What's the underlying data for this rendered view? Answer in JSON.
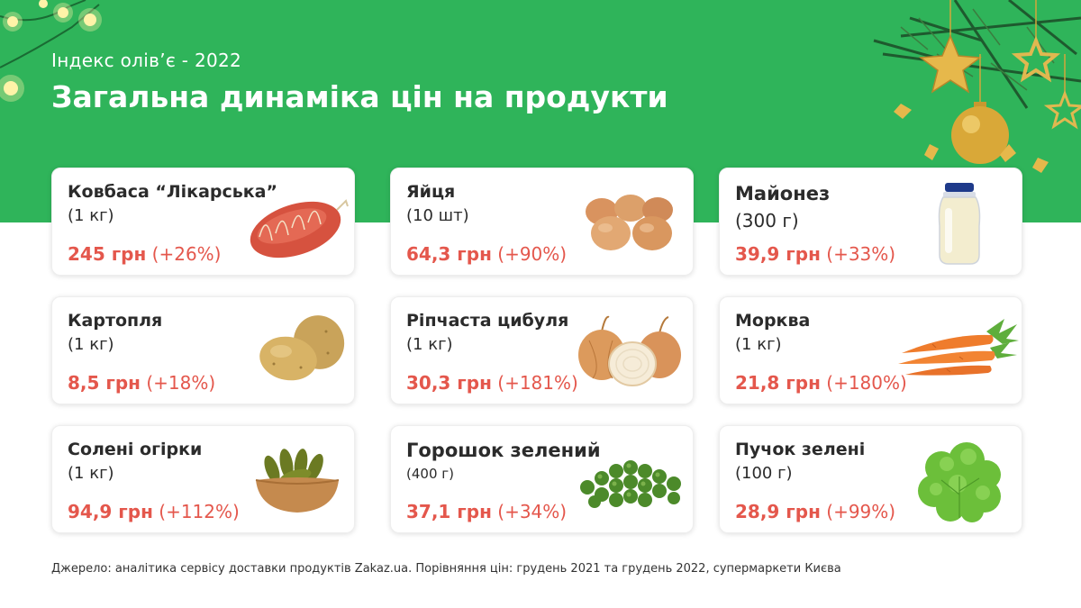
{
  "header": {
    "subtitle": "Індекс олів’є - 2022",
    "title": "Загальна динаміка цін на продукти"
  },
  "products": [
    {
      "name": "Ковбаса “Лікарська”",
      "qty": "(1 кг)",
      "price": "245 грн",
      "change": "(+26%)",
      "icon": "sausage-icon"
    },
    {
      "name": "Яйця",
      "qty": "(10 шт)",
      "price": "64,3 грн",
      "change": "(+90%)",
      "icon": "eggs-icon"
    },
    {
      "name": "Майонез",
      "qty": "(300 г)",
      "price": "39,9 грн",
      "change": "(+33%)",
      "icon": "mayonnaise-jar-icon"
    },
    {
      "name": "Картопля",
      "qty": "(1 кг)",
      "price": "8,5 грн",
      "change": "(+18%)",
      "icon": "potato-icon"
    },
    {
      "name": "Ріпчаста цибуля",
      "qty": "(1 кг)",
      "price": "30,3 грн",
      "change": "(+181%)",
      "icon": "onion-icon"
    },
    {
      "name": "Морква",
      "qty": "(1 кг)",
      "price": "21,8 грн",
      "change": "(+180%)",
      "icon": "carrot-icon"
    },
    {
      "name": "Солені огірки",
      "qty": "(1 кг)",
      "price": "94,9 грн",
      "change": "(+112%)",
      "icon": "pickles-bowl-icon"
    },
    {
      "name": "Горошок зелений",
      "qty": "(400 г)",
      "price": "37,1 грн",
      "change": "(+34%)",
      "icon": "green-peas-icon"
    },
    {
      "name": "Пучок зелені",
      "qty": "(100 г)",
      "price": "28,9 грн",
      "change": "(+99%)",
      "icon": "lettuce-icon"
    }
  ],
  "footer": {
    "source": "Джерело: аналітика сервісу доставки продуктів Zakaz.ua. Порівняння цін: грудень 2021 та грудень 2022, супермаркети Києва"
  },
  "colors": {
    "header_green": "#2fb45a",
    "price_red": "#e4574c",
    "text_dark": "#2b2b2b"
  }
}
